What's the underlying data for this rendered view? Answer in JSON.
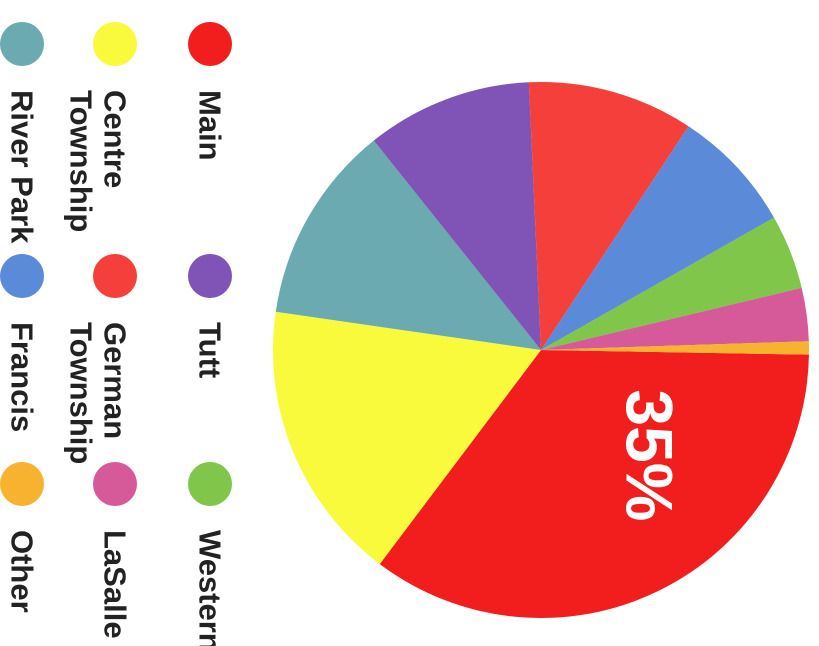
{
  "chart_data": {
    "type": "pie",
    "slices": [
      {
        "label": "Main",
        "value": 35,
        "color": "#f21d1d"
      },
      {
        "label": "Centre Township",
        "value": 17,
        "color": "#fafa3c"
      },
      {
        "label": "River Park",
        "value": 12,
        "color": "#6aaab0"
      },
      {
        "label": "Tutt",
        "value": 10,
        "color": "#7f54b6"
      },
      {
        "label": "German Township",
        "value": 10,
        "color": "#f43f3a"
      },
      {
        "label": "Francis",
        "value": 7.5,
        "color": "#5a8ad8"
      },
      {
        "label": "Western",
        "value": 4.5,
        "color": "#7fc64a"
      },
      {
        "label": "LaSalle",
        "value": 3.2,
        "color": "#d65a9a"
      },
      {
        "label": "Other",
        "value": 0.8,
        "color": "#f7b330"
      }
    ],
    "data_labels": [
      {
        "slice": "Main",
        "text": "35%"
      }
    ],
    "legend": {
      "placement": "left, rotated",
      "items": [
        {
          "lines": [
            "Main"
          ],
          "color": "#f21d1d"
        },
        {
          "lines": [
            "Centre",
            "Township"
          ],
          "color": "#fafa3c"
        },
        {
          "lines": [
            "River Park"
          ],
          "color": "#6aaab0"
        },
        {
          "lines": [
            "Tutt"
          ],
          "color": "#7f54b6"
        },
        {
          "lines": [
            "German",
            "Township"
          ],
          "color": "#f43f3a"
        },
        {
          "lines": [
            "Francis"
          ],
          "color": "#5a8ad8"
        },
        {
          "lines": [
            "Western"
          ],
          "color": "#7fc64a"
        },
        {
          "lines": [
            "LaSalle"
          ],
          "color": "#d65a9a"
        },
        {
          "lines": [
            "Other"
          ],
          "color": "#f7b330"
        }
      ]
    }
  }
}
